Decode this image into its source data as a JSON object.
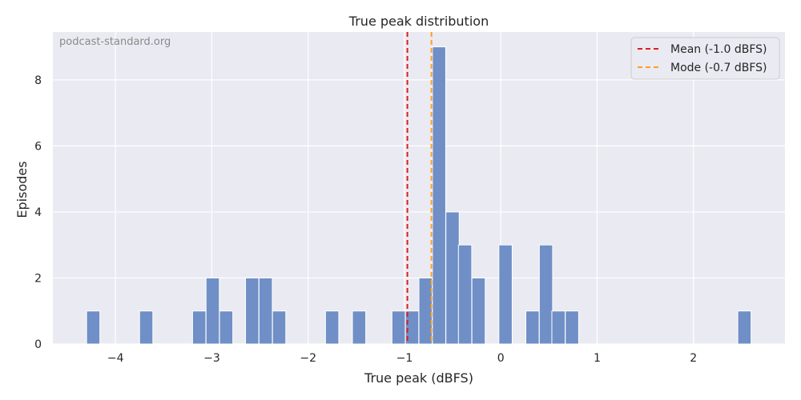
{
  "chart_data": {
    "type": "bar",
    "title": "True peak distribution",
    "xlabel": "True peak (dBFS)",
    "ylabel": "Episodes",
    "watermark": "podcast-standard.org",
    "xlim": [
      -4.65,
      2.95
    ],
    "ylim": [
      0,
      9.45
    ],
    "bin_width": 0.138,
    "xticks": [
      -4,
      -3,
      -2,
      -1,
      0,
      1,
      2
    ],
    "xtick_labels": [
      "−4",
      "−3",
      "−2",
      "−1",
      "0",
      "1",
      "2"
    ],
    "yticks": [
      0,
      2,
      4,
      6,
      8
    ],
    "ytick_labels": [
      "0",
      "2",
      "4",
      "6",
      "8"
    ],
    "grid": true,
    "bar_color": "#6f8fc6",
    "bins": [
      {
        "start": -4.3,
        "count": 1
      },
      {
        "start": -3.75,
        "count": 1
      },
      {
        "start": -3.2,
        "count": 1
      },
      {
        "start": -3.06,
        "count": 2
      },
      {
        "start": -2.92,
        "count": 1
      },
      {
        "start": -2.65,
        "count": 2
      },
      {
        "start": -2.51,
        "count": 2
      },
      {
        "start": -2.37,
        "count": 1
      },
      {
        "start": -1.82,
        "count": 1
      },
      {
        "start": -1.54,
        "count": 1
      },
      {
        "start": -1.13,
        "count": 1
      },
      {
        "start": -0.99,
        "count": 1
      },
      {
        "start": -0.85,
        "count": 2
      },
      {
        "start": -0.71,
        "count": 9
      },
      {
        "start": -0.57,
        "count": 4
      },
      {
        "start": -0.44,
        "count": 3
      },
      {
        "start": -0.3,
        "count": 2
      },
      {
        "start": -0.02,
        "count": 3
      },
      {
        "start": 0.26,
        "count": 1
      },
      {
        "start": 0.4,
        "count": 3
      },
      {
        "start": 0.53,
        "count": 1
      },
      {
        "start": 0.67,
        "count": 1
      },
      {
        "start": 2.46,
        "count": 1
      }
    ],
    "reference_lines": [
      {
        "name": "Mean (-1.0 dBFS)",
        "x": -0.97,
        "color": "#e31a1c",
        "style": "dashed"
      },
      {
        "name": "Mode (-0.7 dBFS)",
        "x": -0.72,
        "color": "#ff9f1c",
        "style": "dashed"
      }
    ],
    "legend_position": "top-right"
  }
}
